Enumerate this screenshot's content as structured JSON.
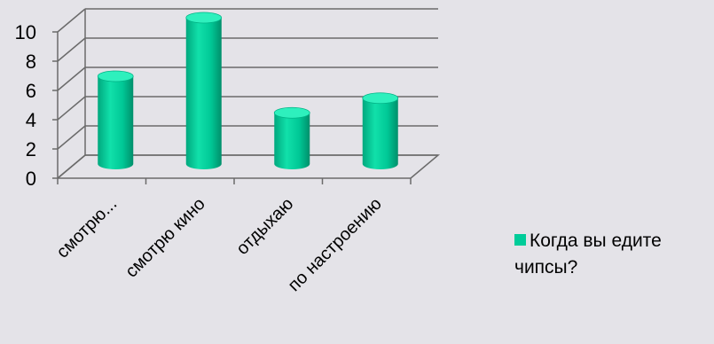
{
  "chart_data": {
    "type": "bar",
    "style": "3d-cylinder",
    "categories": [
      "смотрю...",
      "смотрю кино",
      "отдыхаю",
      "по настроению"
    ],
    "series": [
      {
        "name": "Когда вы едите чипсы?",
        "values": [
          6,
          10,
          3.5,
          4.5
        ],
        "color": "#00cc99"
      }
    ],
    "yticks": [
      "0",
      "2",
      "4",
      "6",
      "8",
      "10"
    ],
    "ylim": [
      0,
      10
    ],
    "grid": true,
    "legend_position": "right"
  }
}
